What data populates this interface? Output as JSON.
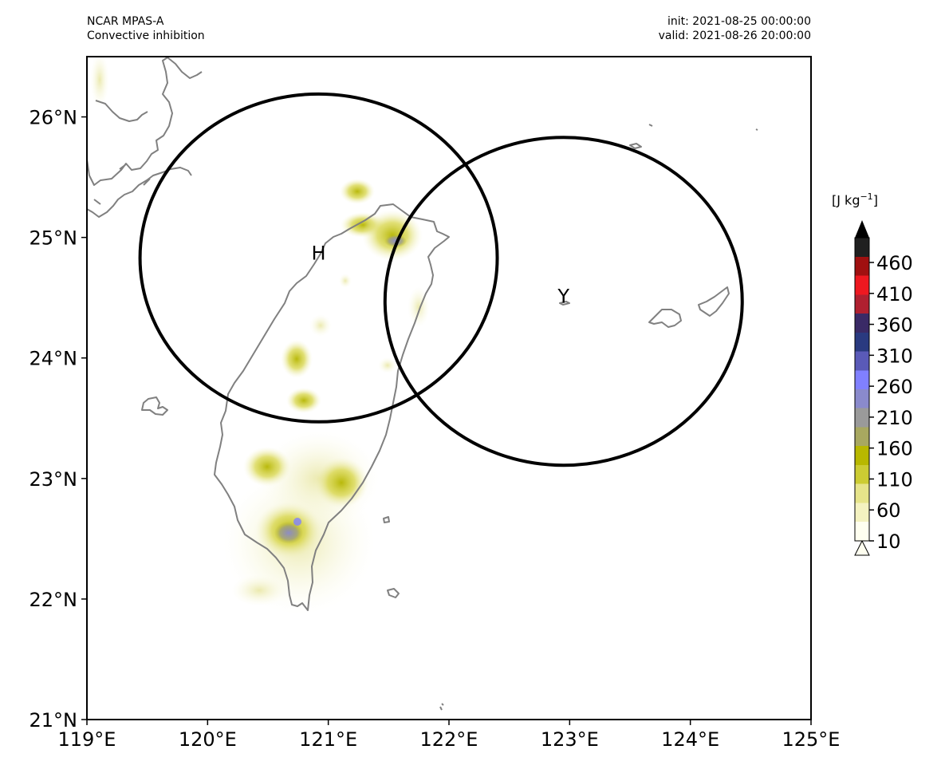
{
  "header": {
    "model": "NCAR MPAS-A",
    "field": "Convective inhibition",
    "init": "init: 2021-08-25 00:00:00",
    "valid": "valid: 2021-08-26 20:00:00"
  },
  "map": {
    "lon_range": [
      119,
      125
    ],
    "lat_range": [
      21,
      26.5
    ],
    "x_ticks": [
      "119°E",
      "120°E",
      "121°E",
      "122°E",
      "123°E",
      "124°E",
      "125°E"
    ],
    "y_ticks": [
      "21°N",
      "22°N",
      "23°N",
      "24°N",
      "25°N",
      "26°N"
    ],
    "coastline_color": "#808080",
    "circles": [
      {
        "label": "H",
        "center_lon": 120.92,
        "center_lat": 24.83,
        "radius_deg_lon": 1.48,
        "radius_deg_lat": 1.36
      },
      {
        "label": "Y",
        "center_lon": 122.95,
        "center_lat": 24.47,
        "radius_deg_lon": 1.48,
        "radius_deg_lat": 1.36
      }
    ]
  },
  "colorbar": {
    "units_prefix": "[J kg",
    "units_exp": "−1",
    "units_suffix": "]",
    "range": [
      10,
      500
    ],
    "tick_labels": [
      "10",
      "60",
      "110",
      "160",
      "210",
      "260",
      "310",
      "360",
      "410",
      "460"
    ],
    "extend": "both",
    "colors": [
      "#fffff0",
      "#f4f2c0",
      "#e6e48a",
      "#cccc33",
      "#b8b800",
      "#a8a860",
      "#9a9a9a",
      "#8a8acc",
      "#8080ff",
      "#5a5ab8",
      "#2a3a80",
      "#3a2a66",
      "#b02030",
      "#ee1820",
      "#a01010",
      "#202020"
    ]
  }
}
